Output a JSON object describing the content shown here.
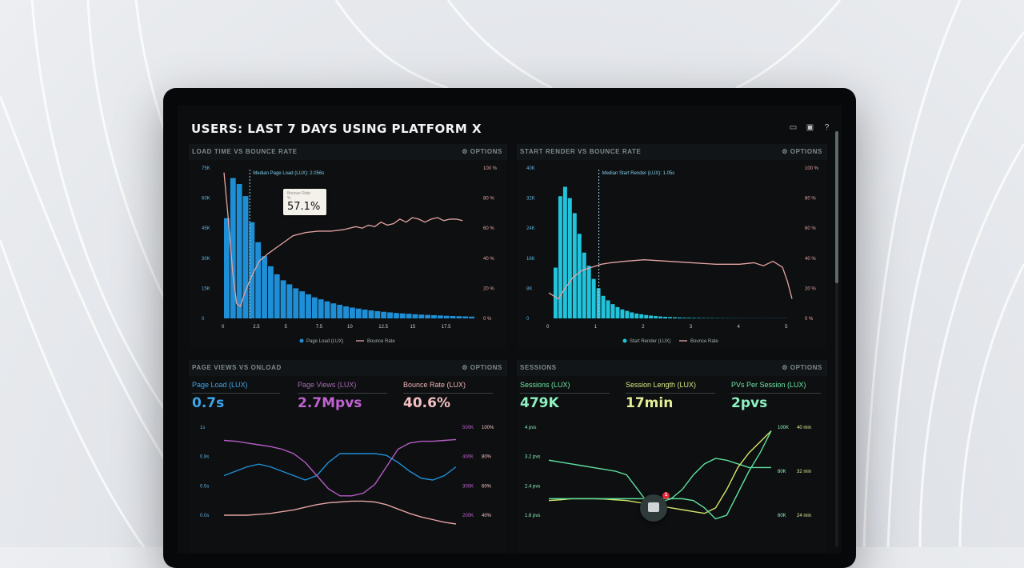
{
  "dashboard": {
    "title": "USERS: LAST 7 DAYS USING PLATFORM X",
    "icons": [
      "monitor-icon",
      "image-icon",
      "help-icon"
    ]
  },
  "options_label": "⚙ OPTIONS",
  "colors": {
    "bar_blue": "#1e8fd6",
    "bar_cyan": "#21c4dd",
    "bounce_pink": "#e4a3a5",
    "purple": "#b65bc7",
    "green": "#5fe0a0",
    "yellow": "#d8e46a",
    "dark_bg": "#0b0d0e"
  },
  "panels": {
    "load_time": {
      "title": "LOAD TIME VS BOUNCE RATE",
      "annotation": "Median Page Load (LUX): 2.056s",
      "tooltip": {
        "label": "Bounce Rate",
        "sub": "%",
        "value": "57.1%"
      },
      "legend": [
        "Page Load (LUX)",
        "Bounce Rate"
      ]
    },
    "start_render": {
      "title": "START RENDER VS BOUNCE RATE",
      "annotation": "Median Start Render (LUX): 1.05s",
      "legend": [
        "Start Render (LUX)",
        "Bounce Rate"
      ]
    },
    "page_views": {
      "title": "PAGE VIEWS VS ONLOAD",
      "metrics": [
        {
          "label": "Page Load (LUX)",
          "value": "0.7s"
        },
        {
          "label": "Page Views (LUX)",
          "value": "2.7Mpvs"
        },
        {
          "label": "Bounce Rate (LUX)",
          "value": "40.6%"
        }
      ]
    },
    "sessions": {
      "title": "SESSIONS",
      "metrics": [
        {
          "label": "Sessions (LUX)",
          "value": "479K"
        },
        {
          "label": "Session Length (LUX)",
          "value": "17min"
        },
        {
          "label": "PVs Per Session (LUX)",
          "value": "2pvs"
        }
      ]
    }
  },
  "chat": {
    "badge": "1"
  },
  "chart_data": [
    {
      "type": "bar",
      "title": "LOAD TIME VS BOUNCE RATE",
      "x_ticks": [
        "0",
        "2.5",
        "5",
        "7.5",
        "10",
        "12.5",
        "15",
        "17.5"
      ],
      "y_ticks_left": [
        "0",
        "15K",
        "30K",
        "45K",
        "60K",
        "75K"
      ],
      "y_ticks_right": [
        "0 %",
        "20 %",
        "40 %",
        "60 %",
        "80 %",
        "100 %"
      ],
      "ylim_left": [
        0,
        75000
      ],
      "ylim_right": [
        0,
        100
      ],
      "xlim": [
        0,
        20
      ],
      "median_x": 2.056,
      "series": [
        {
          "name": "Page Load (LUX)",
          "kind": "bar",
          "x_start": 0,
          "bin_width": 0.5,
          "values": [
            50000,
            70000,
            67000,
            61000,
            48000,
            38000,
            31000,
            26000,
            22000,
            19000,
            17000,
            15000,
            13500,
            12000,
            10500,
            9500,
            8500,
            7500,
            6800,
            6000,
            5400,
            4900,
            4400,
            4000,
            3600,
            3300,
            3000,
            2700,
            2500,
            2300,
            2100,
            1900,
            1750,
            1600,
            1450,
            1300,
            1200,
            1100,
            1000,
            900
          ]
        },
        {
          "name": "Bounce Rate",
          "kind": "line",
          "x": [
            0,
            0.3,
            0.7,
            1.0,
            1.3,
            1.7,
            2.2,
            2.8,
            3.5,
            4.5,
            5.5,
            6.5,
            7.5,
            8.5,
            9.5,
            10.5,
            11.0,
            11.5,
            12.0,
            12.5,
            13.0,
            13.5,
            14.0,
            14.5,
            15.0,
            15.5,
            16.0,
            16.5,
            17.0,
            17.5,
            18.0,
            18.5,
            19.0
          ],
          "values": [
            97,
            70,
            30,
            10,
            8,
            18,
            28,
            38,
            43,
            49,
            55,
            57.1,
            58,
            58,
            59,
            61,
            60,
            62,
            61,
            64,
            62,
            63,
            66,
            64,
            67,
            66,
            64,
            66,
            67,
            65,
            66,
            66,
            65
          ]
        }
      ]
    },
    {
      "type": "bar",
      "title": "START RENDER VS BOUNCE RATE",
      "x_ticks": [
        "0",
        "1",
        "2",
        "3",
        "4",
        "5"
      ],
      "y_ticks_left": [
        "0",
        "8K",
        "16K",
        "24K",
        "32K",
        "40K"
      ],
      "y_ticks_right": [
        "0 %",
        "20 %",
        "40 %",
        "60 %",
        "80 %",
        "100 %"
      ],
      "ylim_left": [
        0,
        40000
      ],
      "ylim_right": [
        0,
        100
      ],
      "xlim": [
        0,
        5.2
      ],
      "median_x": 1.05,
      "series": [
        {
          "name": "Start Render (LUX)",
          "kind": "bar",
          "x_start": 0.1,
          "bin_width": 0.1,
          "values": [
            13500,
            32500,
            35000,
            32000,
            28000,
            22500,
            17500,
            14000,
            10500,
            8000,
            6000,
            4800,
            3800,
            3000,
            2400,
            2000,
            1600,
            1300,
            1100,
            900,
            750,
            620,
            500,
            420,
            350,
            300,
            250,
            200,
            180,
            150,
            130,
            110,
            100,
            90,
            80,
            70,
            60,
            55,
            50,
            45,
            40,
            40,
            40,
            40,
            40,
            40,
            40,
            40,
            40
          ]
        },
        {
          "name": "Bounce Rate",
          "kind": "line",
          "x": [
            0,
            0.1,
            0.2,
            0.3,
            0.5,
            0.7,
            0.9,
            1.1,
            1.3,
            1.6,
            2.0,
            2.5,
            3.0,
            3.5,
            4.0,
            4.3,
            4.5,
            4.7,
            4.9,
            5.0,
            5.1
          ],
          "values": [
            17,
            15,
            13,
            18,
            27,
            32,
            34,
            36,
            37,
            38,
            39,
            38,
            37,
            36,
            36,
            37,
            35,
            38,
            34,
            25,
            13
          ]
        }
      ]
    },
    {
      "type": "line",
      "title": "PAGE VIEWS VS ONLOAD",
      "y_ticks_left": [
        "0.0s",
        "0.5s",
        "0.8s",
        "1s"
      ],
      "y_ticks_right_1": [
        "200K",
        "300K",
        "400K",
        "500K"
      ],
      "y_ticks_right_2": [
        "40%",
        "60%",
        "80%",
        "100%"
      ],
      "x": [
        0,
        1,
        2,
        3,
        4,
        5,
        6,
        7,
        8,
        9,
        10,
        11,
        12,
        13,
        14,
        15,
        16,
        17,
        18,
        19,
        20
      ],
      "series": [
        {
          "name": "Page Load (LUX)",
          "color_key": "bar_blue",
          "values": [
            0.45,
            0.5,
            0.55,
            0.58,
            0.55,
            0.5,
            0.45,
            0.4,
            0.45,
            0.6,
            0.7,
            0.7,
            0.7,
            0.7,
            0.68,
            0.6,
            0.5,
            0.42,
            0.4,
            0.45,
            0.55
          ]
        },
        {
          "name": "Page Views (LUX)",
          "color_key": "purple",
          "values": [
            0.85,
            0.84,
            0.82,
            0.8,
            0.78,
            0.75,
            0.7,
            0.6,
            0.45,
            0.3,
            0.22,
            0.22,
            0.25,
            0.35,
            0.55,
            0.75,
            0.82,
            0.84,
            0.84,
            0.85,
            0.86
          ]
        },
        {
          "name": "Bounce Rate (LUX)",
          "color_key": "bounce_pink",
          "values": [
            0.0,
            0.0,
            0.0,
            0.01,
            0.02,
            0.04,
            0.06,
            0.09,
            0.12,
            0.14,
            0.15,
            0.16,
            0.16,
            0.15,
            0.12,
            0.07,
            0.02,
            -0.02,
            -0.05,
            -0.08,
            -0.1
          ]
        }
      ]
    },
    {
      "type": "line",
      "title": "SESSIONS",
      "y_ticks_left": [
        "1.6 pvs",
        "2.4 pvs",
        "3.2 pvs",
        "4 pvs"
      ],
      "y_ticks_right_1": [
        "60K",
        "80K",
        "100K"
      ],
      "y_ticks_right_2": [
        "24 min",
        "32 min",
        "40 min"
      ],
      "x": [
        0,
        1,
        2,
        3,
        4,
        5,
        6,
        7,
        8,
        9,
        10,
        11,
        12,
        13,
        14,
        15,
        16,
        17,
        18,
        19,
        20
      ],
      "series": [
        {
          "name": "Sessions (LUX)",
          "color_key": "green",
          "values": [
            3.1,
            3.05,
            3.0,
            2.95,
            2.9,
            2.85,
            2.8,
            2.7,
            2.3,
            1.9,
            1.95,
            2.05,
            2.3,
            2.7,
            3.0,
            3.15,
            3.1,
            3.0,
            2.9,
            2.9,
            2.9
          ]
        },
        {
          "name": "Session Length (LUX)",
          "color_key": "yellow",
          "values": [
            2.0,
            2.02,
            2.05,
            2.05,
            2.05,
            2.04,
            2.02,
            2.0,
            1.95,
            1.9,
            1.85,
            1.8,
            1.75,
            1.7,
            1.65,
            1.8,
            2.3,
            2.9,
            3.3,
            3.6,
            3.9
          ]
        },
        {
          "name": "PVs Per Session (LUX)",
          "color_key": "green",
          "values": [
            2.05,
            2.05,
            2.05,
            2.05,
            2.05,
            2.05,
            2.05,
            2.05,
            2.05,
            2.05,
            2.05,
            2.05,
            2.05,
            2.0,
            1.8,
            1.5,
            1.6,
            2.2,
            2.8,
            3.3,
            3.9
          ]
        }
      ]
    }
  ]
}
